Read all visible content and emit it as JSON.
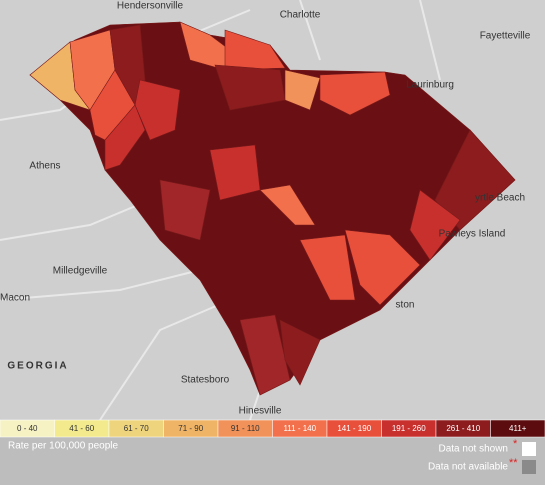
{
  "map": {
    "places": [
      {
        "label": "Charlotte"
      },
      {
        "label": "Fayetteville"
      },
      {
        "label": "Athens"
      },
      {
        "label": "Macon"
      },
      {
        "label": "GEORGIA"
      },
      {
        "label": "yrtle Beach"
      },
      {
        "label": "Pawleys Island"
      },
      {
        "label": "ston"
      },
      {
        "label": "Hendersonville"
      },
      {
        "label": "Laurinburg"
      },
      {
        "label": "Milledgeville"
      },
      {
        "label": "Statesboro"
      },
      {
        "label": "Hinesville"
      }
    ]
  },
  "legend": {
    "bins": [
      {
        "label": "0 - 40",
        "color": "#f6f2c4"
      },
      {
        "label": "41 - 60",
        "color": "#f2ea8c"
      },
      {
        "label": "61 - 70",
        "color": "#efd47e"
      },
      {
        "label": "71 - 90",
        "color": "#f0b466"
      },
      {
        "label": "91 - 110",
        "color": "#f0925a"
      },
      {
        "label": "111 - 140",
        "color": "#f2704c"
      },
      {
        "label": "141 - 190",
        "color": "#e8503c"
      },
      {
        "label": "191 - 260",
        "color": "#c8302e"
      },
      {
        "label": "261 - 410",
        "color": "#8c1c1e"
      },
      {
        "label": "411+",
        "color": "#5c0c0e"
      }
    ],
    "caption": "Rate per 100,000 people",
    "not_shown": "Data not shown",
    "not_shown_mark": "*",
    "not_available": "Data not available",
    "not_available_mark": "**"
  }
}
